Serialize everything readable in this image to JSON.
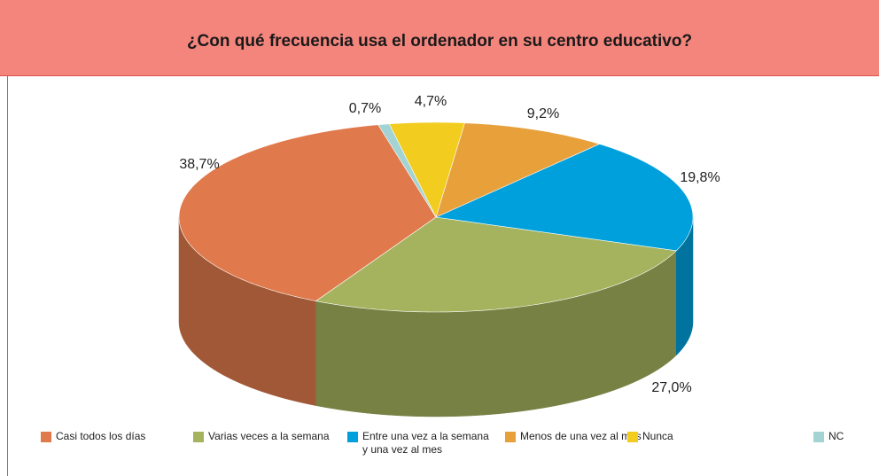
{
  "chart_data": {
    "type": "pie3d",
    "title": "¿Con qué frecuencia usa el ordenador en su centro educativo?",
    "categories": [
      "Casi todos los días",
      "Varias veces a la semana",
      "Entre una vez a la semana\ny una vez al mes",
      "Menos de una vez al mes",
      "Nunca",
      "NC"
    ],
    "values": [
      38.7,
      27.0,
      19.8,
      9.2,
      4.7,
      0.7
    ],
    "value_labels": [
      "38,7%",
      "27,0%",
      "19,8%",
      "9,2%",
      "4,7%",
      "0,7%"
    ],
    "colors": [
      "#e07a4c",
      "#a5b35e",
      "#00a0dc",
      "#e8a03b",
      "#f2cc1e",
      "#a3d3d3"
    ]
  }
}
